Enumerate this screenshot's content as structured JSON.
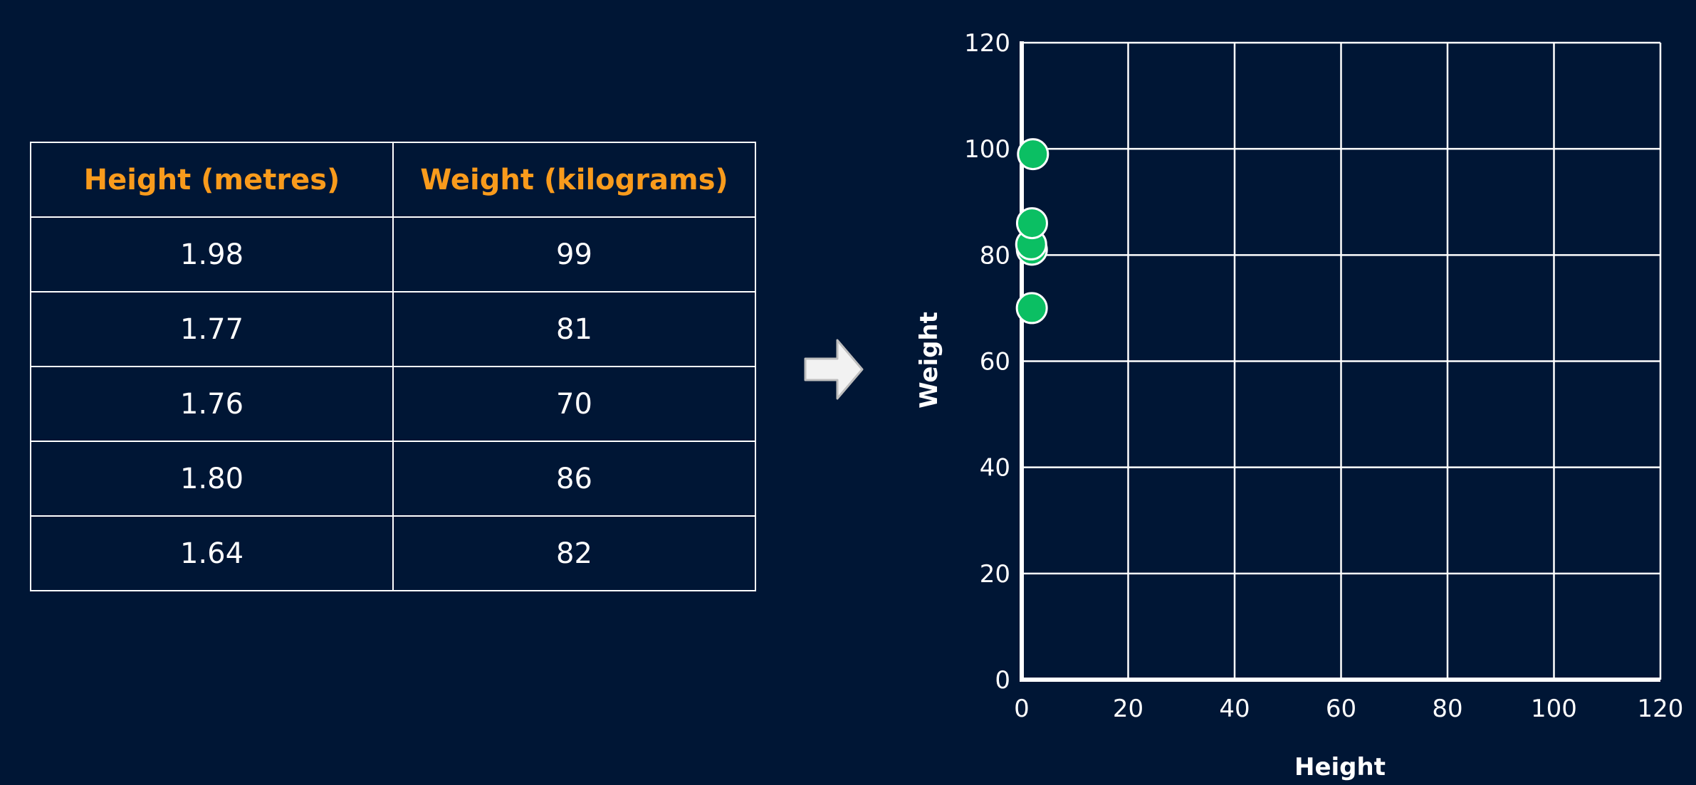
{
  "table": {
    "headers": [
      "Height (metres)",
      "Weight (kilograms)"
    ],
    "rows": [
      [
        "1.98",
        "99"
      ],
      [
        "1.77",
        "81"
      ],
      [
        "1.76",
        "70"
      ],
      [
        "1.80",
        "86"
      ],
      [
        "1.64",
        "82"
      ]
    ]
  },
  "colors": {
    "background": "#001635",
    "header_text": "#f99b1c",
    "grid": "#ffffff",
    "point_fill": "#0bbf63",
    "point_stroke": "#ffffff"
  },
  "arrow": {
    "icon": "right-arrow-icon"
  },
  "chart_data": {
    "type": "scatter",
    "xlabel": "Height",
    "ylabel": "Weight",
    "xlim": [
      0,
      120
    ],
    "ylim": [
      0,
      120
    ],
    "xticks": [
      0,
      20,
      40,
      60,
      80,
      100,
      120
    ],
    "yticks": [
      0,
      20,
      40,
      60,
      80,
      100,
      120
    ],
    "grid": true,
    "series": [
      {
        "points": [
          {
            "x": 1.98,
            "y": 99
          },
          {
            "x": 1.77,
            "y": 81
          },
          {
            "x": 1.76,
            "y": 70
          },
          {
            "x": 1.8,
            "y": 86
          },
          {
            "x": 1.64,
            "y": 82
          }
        ]
      }
    ]
  }
}
